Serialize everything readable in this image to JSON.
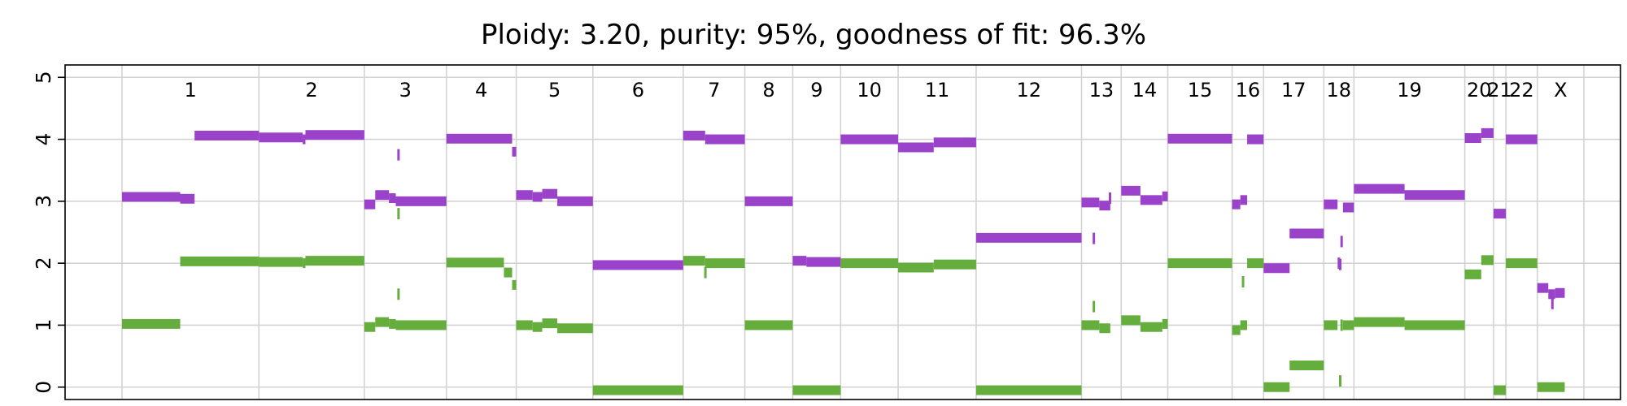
{
  "chart_data": {
    "type": "segment",
    "title": "Ploidy: 3.20, purity: 95%, goodness of fit: 96.3%",
    "xlabel": "",
    "ylabel": "",
    "ylim": [
      -0.2,
      5.2
    ],
    "y_ticks": [
      0,
      1,
      2,
      3,
      4,
      5
    ],
    "grid": true,
    "colors": {
      "major": "#9a42c9",
      "minor": "#65ae3e",
      "grid": "#d3d3d3",
      "axis": "#000000"
    },
    "chromosomes": [
      {
        "label": "1",
        "start": 0,
        "end": 1000
      },
      {
        "label": "2",
        "start": 1000,
        "end": 1770
      },
      {
        "label": "3",
        "start": 1770,
        "end": 2370
      },
      {
        "label": "4",
        "start": 2370,
        "end": 2880
      },
      {
        "label": "5",
        "start": 2880,
        "end": 3440
      },
      {
        "label": "6",
        "start": 3440,
        "end": 4100
      },
      {
        "label": "7",
        "start": 4100,
        "end": 4550
      },
      {
        "label": "8",
        "start": 4550,
        "end": 4900
      },
      {
        "label": "9",
        "start": 4900,
        "end": 5250
      },
      {
        "label": "10",
        "start": 5250,
        "end": 5670
      },
      {
        "label": "11",
        "start": 5670,
        "end": 6240
      },
      {
        "label": "12",
        "start": 6240,
        "end": 7010
      },
      {
        "label": "13",
        "start": 7010,
        "end": 7300
      },
      {
        "label": "14",
        "start": 7300,
        "end": 7640
      },
      {
        "label": "15",
        "start": 7640,
        "end": 8110
      },
      {
        "label": "16",
        "start": 8110,
        "end": 8340
      },
      {
        "label": "17",
        "start": 8340,
        "end": 8780
      },
      {
        "label": "18",
        "start": 8780,
        "end": 9000
      },
      {
        "label": "19",
        "start": 9000,
        "end": 9810
      },
      {
        "label": "20",
        "start": 9810,
        "end": 10020
      },
      {
        "label": "21",
        "start": 10020,
        "end": 10110
      },
      {
        "label": "22",
        "start": 10110,
        "end": 10340
      },
      {
        "label": "X",
        "start": 10340,
        "end": 10680
      }
    ],
    "series": [
      {
        "name": "major",
        "segments": [
          [
            0,
            425,
            3.07
          ],
          [
            425,
            530,
            3.04
          ],
          [
            530,
            1000,
            4.06
          ],
          [
            1000,
            1320,
            4.03
          ],
          [
            1320,
            1340,
            4.0
          ],
          [
            1340,
            1770,
            4.07
          ],
          [
            1770,
            1850,
            2.95
          ],
          [
            1850,
            1950,
            3.1
          ],
          [
            1950,
            2000,
            3.05
          ],
          [
            2000,
            2370,
            3.0
          ],
          [
            2370,
            2850,
            4.01
          ],
          [
            2850,
            2880,
            3.8
          ],
          [
            2880,
            3000,
            3.1
          ],
          [
            3000,
            3070,
            3.07
          ],
          [
            3070,
            3180,
            3.12
          ],
          [
            3180,
            3440,
            3.0
          ],
          [
            3440,
            4100,
            1.97
          ],
          [
            4100,
            4260,
            4.06
          ],
          [
            4260,
            4550,
            4.0
          ],
          [
            4550,
            4900,
            3.0
          ],
          [
            4900,
            5000,
            2.04
          ],
          [
            5000,
            5250,
            2.02
          ],
          [
            5250,
            5670,
            4.0
          ],
          [
            5670,
            5930,
            3.87
          ],
          [
            5930,
            6240,
            3.95
          ],
          [
            6240,
            7010,
            2.41
          ],
          [
            7010,
            7140,
            2.98
          ],
          [
            7140,
            7220,
            2.93
          ],
          [
            7300,
            7440,
            3.17
          ],
          [
            7440,
            7600,
            3.02
          ],
          [
            7600,
            7640,
            3.08
          ],
          [
            7640,
            8110,
            4.01
          ],
          [
            8110,
            8170,
            2.95
          ],
          [
            8170,
            8220,
            3.02
          ],
          [
            8220,
            8340,
            4.0
          ],
          [
            8340,
            8530,
            1.92
          ],
          [
            8530,
            8780,
            2.48
          ],
          [
            8780,
            8880,
            2.95
          ],
          [
            8920,
            9000,
            2.9
          ],
          [
            9000,
            9370,
            3.2
          ],
          [
            9370,
            9810,
            3.1
          ],
          [
            9810,
            9930,
            4.02
          ],
          [
            9930,
            10020,
            4.1
          ],
          [
            10020,
            10110,
            2.8
          ],
          [
            10110,
            10340,
            4.0
          ],
          [
            10340,
            10420,
            1.6
          ],
          [
            10420,
            10470,
            1.5
          ],
          [
            10470,
            10540,
            1.52
          ]
        ],
        "ticks": [
          [
            2020,
            3.75
          ],
          [
            7218,
            3.05
          ],
          [
            7100,
            2.4
          ],
          [
            8890,
            2.0
          ],
          [
            8910,
            2.35
          ],
          [
            8900,
            1.98
          ],
          [
            10450,
            1.35
          ]
        ]
      },
      {
        "name": "minor",
        "segments": [
          [
            0,
            425,
            1.02
          ],
          [
            425,
            1000,
            2.03
          ],
          [
            1000,
            1320,
            2.02
          ],
          [
            1320,
            1340,
            2.0
          ],
          [
            1340,
            1770,
            2.04
          ],
          [
            1770,
            1850,
            0.97
          ],
          [
            1850,
            1950,
            1.05
          ],
          [
            1950,
            2000,
            1.02
          ],
          [
            2000,
            2370,
            1.0
          ],
          [
            2370,
            2790,
            2.01
          ],
          [
            2790,
            2850,
            1.85
          ],
          [
            2850,
            2880,
            1.65
          ],
          [
            2880,
            3000,
            1.0
          ],
          [
            3000,
            3070,
            0.97
          ],
          [
            3070,
            3180,
            1.03
          ],
          [
            3180,
            3440,
            0.95
          ],
          [
            3440,
            4100,
            -0.05
          ],
          [
            4100,
            4260,
            2.04
          ],
          [
            4260,
            4550,
            2.0
          ],
          [
            4550,
            4900,
            1.0
          ],
          [
            4900,
            5250,
            -0.05
          ],
          [
            5250,
            5670,
            2.0
          ],
          [
            5670,
            5930,
            1.93
          ],
          [
            5930,
            6240,
            1.98
          ],
          [
            6240,
            7010,
            -0.05
          ],
          [
            7010,
            7140,
            1.0
          ],
          [
            7140,
            7220,
            0.95
          ],
          [
            7300,
            7440,
            1.08
          ],
          [
            7440,
            7600,
            0.97
          ],
          [
            7600,
            7640,
            1.02
          ],
          [
            7640,
            8110,
            2.0
          ],
          [
            8110,
            8170,
            0.92
          ],
          [
            8170,
            8220,
            1.0
          ],
          [
            8220,
            8340,
            2.0
          ],
          [
            8340,
            8530,
            0.0
          ],
          [
            8530,
            8780,
            0.35
          ],
          [
            8780,
            8880,
            1.0
          ],
          [
            8920,
            9000,
            1.0
          ],
          [
            9000,
            9370,
            1.05
          ],
          [
            9370,
            9810,
            1.0
          ],
          [
            9810,
            9930,
            1.82
          ],
          [
            9930,
            10020,
            2.05
          ],
          [
            10020,
            10110,
            -0.05
          ],
          [
            10110,
            10340,
            2.0
          ],
          [
            10340,
            10540,
            0.0
          ]
        ],
        "ticks": [
          [
            2020,
            2.8
          ],
          [
            2020,
            1.5
          ],
          [
            7100,
            1.3
          ],
          [
            8190,
            1.7
          ],
          [
            8900,
            0.1
          ],
          [
            8910,
            1.0
          ],
          [
            4262,
            1.85
          ]
        ]
      }
    ]
  }
}
